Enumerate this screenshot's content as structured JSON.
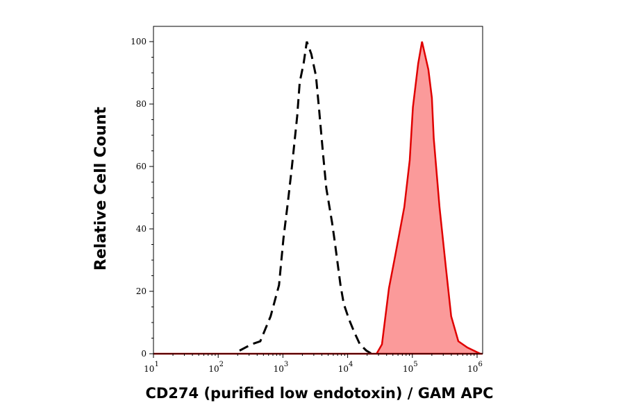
{
  "chart_data": {
    "type": "line",
    "title": "",
    "xlabel": "CD274 (purified low endotoxin) / GAM APC",
    "ylabel": "Relative Cell Count",
    "xscale": "log",
    "xlim": [
      10,
      1200000
    ],
    "ylim": [
      0,
      105
    ],
    "x_ticks": [
      {
        "value": 10,
        "base": "10",
        "exp": "1"
      },
      {
        "value": 100,
        "base": "10",
        "exp": "2"
      },
      {
        "value": 1000,
        "base": "10",
        "exp": "3"
      },
      {
        "value": 10000,
        "base": "10",
        "exp": "4"
      },
      {
        "value": 100000,
        "base": "10",
        "exp": "5"
      },
      {
        "value": 1000000,
        "base": "10",
        "exp": "6"
      }
    ],
    "y_ticks": [
      0,
      20,
      40,
      60,
      80,
      100
    ],
    "grid": false,
    "series": [
      {
        "style": "dashed",
        "color": "#000000",
        "fill": "none",
        "x": [
          214,
          324,
          447,
          646,
          871,
          1020,
          1200,
          1380,
          1660,
          1820,
          2090,
          2340,
          2750,
          3240,
          3630,
          4170,
          4680,
          5750,
          6310,
          7760,
          8710,
          10500,
          12600,
          15500,
          19500,
          23400
        ],
        "y": [
          1,
          3,
          4,
          12,
          22,
          37,
          49,
          60,
          76,
          87,
          93,
          100,
          96,
          89,
          78,
          64,
          53,
          42,
          36,
          22,
          16,
          11,
          7,
          3,
          1,
          0
        ]
      },
      {
        "style": "solid",
        "color": "#e00000",
        "fill": "#fb9a9a",
        "x": [
          28000,
          33900,
          43500,
          55000,
          75000,
          91000,
          102000,
          123000,
          141000,
          177000,
          200000,
          214000,
          263000,
          328000,
          398000,
          513000,
          708000,
          1120000
        ],
        "y": [
          0,
          3,
          21,
          32,
          47,
          62,
          79,
          93,
          100,
          91,
          82,
          69,
          47,
          28,
          12,
          4,
          2,
          0
        ]
      }
    ]
  }
}
